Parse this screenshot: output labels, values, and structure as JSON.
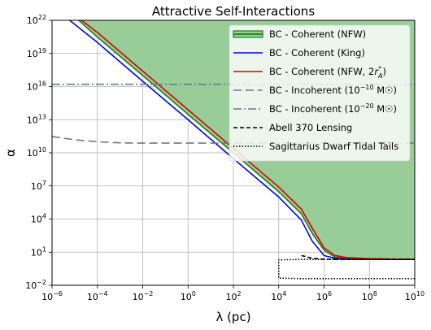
{
  "chart_data": {
    "type": "line",
    "title": "Attractive Self-Interactions",
    "xlabel": "λ (pc)",
    "ylabel": "α",
    "x_scale": "log",
    "y_scale": "log",
    "xlim": [
      1e-06,
      10000000000.0
    ],
    "ylim": [
      0.01,
      1e+22
    ],
    "grid": true,
    "legend_position": "top-right",
    "x_ticks": [
      {
        "value": 1e-06,
        "base": "10",
        "exp": "−6"
      },
      {
        "value": 0.0001,
        "base": "10",
        "exp": "−4"
      },
      {
        "value": 0.01,
        "base": "10",
        "exp": "−2"
      },
      {
        "value": 1.0,
        "base": "10",
        "exp": "0"
      },
      {
        "value": 100.0,
        "base": "10",
        "exp": "2"
      },
      {
        "value": 10000.0,
        "base": "10",
        "exp": "4"
      },
      {
        "value": 1000000.0,
        "base": "10",
        "exp": "6"
      },
      {
        "value": 100000000.0,
        "base": "10",
        "exp": "8"
      },
      {
        "value": 10000000000.0,
        "base": "10",
        "exp": "10"
      }
    ],
    "y_ticks": [
      {
        "value": 0.01,
        "base": "10",
        "exp": "−2"
      },
      {
        "value": 10.0,
        "base": "10",
        "exp": "1"
      },
      {
        "value": 10000.0,
        "base": "10",
        "exp": "4"
      },
      {
        "value": 10000000.0,
        "base": "10",
        "exp": "7"
      },
      {
        "value": 10000000000.0,
        "base": "10",
        "exp": "10"
      },
      {
        "value": 10000000000000.0,
        "base": "10",
        "exp": "13"
      },
      {
        "value": 1e+16,
        "base": "10",
        "exp": "16"
      },
      {
        "value": 1e+19,
        "base": "10",
        "exp": "19"
      },
      {
        "value": 1e+22,
        "base": "10",
        "exp": "22"
      }
    ],
    "series": [
      {
        "name": "BC - Coherent (NFW)",
        "legend_main": "BC - Coherent (NFW)",
        "legend_sub": "",
        "legend_suffix": "",
        "kind": "fill_line",
        "color": "#1a7f1a",
        "fill": "#98cd98",
        "dash": "",
        "x": [
          1.5e-05,
          0.0001,
          0.01,
          1,
          100,
          10000.0,
          100000.0,
          300000.0,
          1000000.0,
          3000000.0,
          10000000.0,
          100000000.0,
          10000000000.0
        ],
        "y": [
          1e+22,
          3e+20,
          1e+17,
          30000000000000.0,
          10000000000.0,
          3000000.0,
          30000.0,
          500.0,
          15,
          3.5,
          2.8,
          2.2,
          2.2
        ]
      },
      {
        "name": "BC - Coherent (King)",
        "legend_main": "BC - Coherent (King)",
        "legend_sub": "",
        "legend_suffix": "",
        "kind": "line",
        "color": "#0000ee",
        "fill": "",
        "dash": "",
        "x": [
          6e-06,
          0.0001,
          0.01,
          1,
          100,
          10000.0,
          100000.0,
          300000.0,
          1000000.0,
          3000000.0,
          10000000.0,
          100000000.0,
          10000000000.0
        ],
        "y": [
          1e+22,
          1e+20,
          3e+16,
          10000000000000.0,
          3000000000.0,
          1000000.0,
          8000.0,
          100,
          5,
          2.8,
          2.3,
          2.2,
          2.2
        ]
      },
      {
        "name": "BC - Coherent (NFW, 2r*A)",
        "legend_main": "BC - Coherent (NFW, 2",
        "legend_sub": "A",
        "legend_suffix": ")",
        "kind": "line",
        "color": "#dd0000",
        "fill": "",
        "dash": "",
        "x": [
          2e-05,
          0.0001,
          0.01,
          1,
          100,
          10000.0,
          100000.0,
          300000.0,
          1000000.0,
          3000000.0,
          10000000.0,
          100000000.0,
          10000000000.0
        ],
        "y": [
          1e+22,
          8e+20,
          2.5e+17,
          80000000000000.0,
          25000000000.0,
          8000000.0,
          80000.0,
          1500.0,
          25,
          5,
          3.2,
          2.6,
          2.2
        ]
      },
      {
        "name": "BC - Incoherent (10^-10 M☉)",
        "legend_main": "BC - Incoherent (10",
        "legend_sup": "−10",
        "legend_suffix": " M☉)",
        "kind": "line",
        "color": "#6a7a8c",
        "fill": "",
        "dash": "10 5",
        "x": [
          1e-06,
          1e-05,
          0.0001,
          0.001,
          0.01,
          0.1,
          1,
          100,
          10000.0,
          1000000.0,
          100000000.0,
          10000000000.0
        ],
        "y": [
          300000000000.0,
          150000000000.0,
          100000000000.0,
          80000000000.0,
          75000000000.0,
          75000000000.0,
          75000000000.0,
          75000000000.0,
          75000000000.0,
          75000000000.0,
          75000000000.0,
          75000000000.0
        ]
      },
      {
        "name": "BC - Incoherent (10^-20 M☉)",
        "legend_main": "BC - Incoherent (10",
        "legend_sup": "−20",
        "legend_suffix": " M☉)",
        "kind": "line",
        "color": "#6a7a8c",
        "fill": "",
        "dash": "10 3 2 3",
        "x": [
          1e-06,
          10000000000.0
        ],
        "y": [
          1.6e+16,
          1.6e+16
        ]
      },
      {
        "name": "Abell 370 Lensing",
        "legend_main": "Abell 370 Lensing",
        "legend_sub": "",
        "legend_suffix": "",
        "kind": "line",
        "color": "#000000",
        "fill": "",
        "dash": "5 3",
        "x": [
          100000.0,
          300000.0,
          1000000.0,
          3000000.0,
          10000000.0,
          100000000.0,
          10000000000.0
        ],
        "y": [
          5,
          2.8,
          2.3,
          2.2,
          2.2,
          2.2,
          2.2
        ]
      },
      {
        "name": "Sagittarius Dwarf Tidal Tails",
        "legend_main": "Sagittarius Dwarf Tidal Tails",
        "legend_sub": "",
        "legend_suffix": "",
        "kind": "line",
        "color": "#000000",
        "fill": "",
        "dash": "1.5 2",
        "x": [
          10000000000.0,
          3000000.0,
          1000000.0,
          100000.0,
          10000.0,
          10000.0,
          100000.0,
          1000000.0,
          100000000.0,
          10000000000.0
        ],
        "y": [
          0.04,
          0.04,
          0.04,
          0.04,
          0.045,
          2,
          2.2,
          2.2,
          2.2,
          2.2
        ]
      }
    ]
  }
}
